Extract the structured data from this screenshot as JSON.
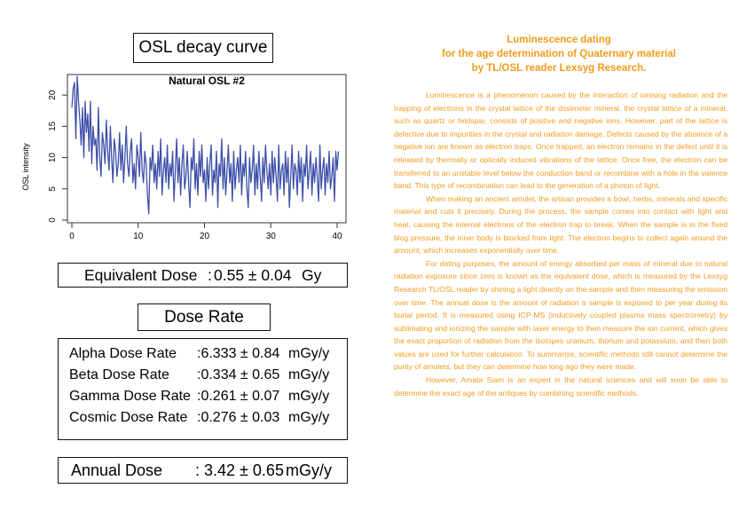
{
  "osl_title": "OSL decay curve",
  "chart_data": {
    "type": "line",
    "title": "Natural OSL #2",
    "xlabel": "",
    "ylabel": "OSL intensity",
    "xlim": [
      0,
      40
    ],
    "ylim": [
      0,
      23
    ],
    "xticks": [
      0,
      10,
      20,
      30,
      40
    ],
    "yticks": [
      0,
      5,
      10,
      15,
      20
    ],
    "grid": false,
    "series_color": "#3d4fa8",
    "x_step": 0.2,
    "x_start": 0,
    "values": [
      18,
      21,
      22,
      13,
      23,
      19,
      16,
      12,
      18,
      10,
      19,
      14,
      17,
      11,
      19,
      9,
      15,
      12,
      13,
      8,
      18,
      10,
      7,
      14,
      12,
      9,
      16,
      11,
      8,
      15,
      10,
      6,
      13,
      11,
      7,
      9,
      14,
      8,
      12,
      6,
      10,
      15,
      9,
      7,
      11,
      13,
      6,
      9,
      5,
      12,
      10,
      7,
      14,
      8,
      6,
      11,
      9,
      4,
      1,
      10,
      8,
      12,
      6,
      9,
      5,
      11,
      7,
      13,
      4,
      8,
      10,
      6,
      12,
      5,
      9,
      7,
      11,
      3,
      8,
      13,
      6,
      10,
      4,
      9,
      12,
      5,
      7,
      11,
      6,
      2,
      10,
      8,
      13,
      5,
      9,
      4,
      11,
      7,
      12,
      6,
      8,
      3,
      10,
      5,
      9,
      12,
      4,
      8,
      6,
      11,
      2,
      9,
      7,
      13,
      5,
      10,
      4,
      8,
      12,
      6,
      9,
      3,
      11,
      5,
      8,
      10,
      6,
      12,
      4,
      9,
      7,
      11,
      5,
      2,
      10,
      6,
      8,
      12,
      4,
      9,
      5,
      11,
      7,
      3,
      10,
      6,
      12,
      8,
      5,
      9,
      4,
      11,
      6,
      10,
      7,
      3,
      12,
      5,
      8,
      9,
      4,
      11,
      6,
      10,
      2,
      7,
      12,
      5,
      9,
      8,
      4,
      11,
      6,
      10,
      3,
      9,
      7,
      12,
      5,
      8,
      11,
      4,
      9,
      6,
      10,
      7,
      3,
      12,
      5,
      8,
      10,
      4,
      9,
      6,
      11,
      5,
      7,
      10,
      3,
      11,
      8,
      11
    ]
  },
  "equivalent_dose": {
    "label": "Equivalent Dose",
    "sep": ":",
    "value": "0.55 ± 0.04",
    "unit": "Gy"
  },
  "dose_rate_title": "Dose Rate",
  "dose_rates": [
    {
      "label": "Alpha Dose Rate",
      "value": ":6.333 ± 0.84",
      "unit": "mGy/y"
    },
    {
      "label": "Beta Dose Rate",
      "value": ":0.334 ± 0.65",
      "unit": "mGy/y"
    },
    {
      "label": "Gamma Dose Rate",
      "value": ":0.261 ± 0.07",
      "unit": "mGy/y"
    },
    {
      "label": "Cosmic Dose Rate",
      "value": ":0.276 ± 0.03",
      "unit": "mGy/y"
    }
  ],
  "annual_dose": {
    "label": "Annual Dose",
    "value": ": 3.42 ± 0.65",
    "unit": "mGy/y"
  },
  "article": {
    "title_lines": [
      "Luminescence dating",
      "for the age determination of Quaternary material",
      "by TL/OSL reader Lexsyg Research."
    ],
    "paragraphs": [
      "Luminescence is a phenomenon caused by the interaction of ionising radiation and the trapping of electrons in the crystal lattice of the dosimeter mineral. the crystal lattice of a mineral, such as quartz or feldspar, consists of positive and negative ions. However, part of the lattice is defective due to impurities in the crystal and radiation damage. Defects caused by the absence of a negative ion are known as electron traps. Once trapped, an electron remains in the defect until it is released by thermally or optically induced vibrations of the lattice. Once free, the electron can be transferred to an unstable level below the conduction band or recombine with a hole in the valence band. This type of recombination can lead to the generation of a photon of light.",
      "When making an ancient amulet, the artisan provides a bowl, herbs, minerals and specific material and cuts it precisely. During the process, the sample comes into contact with light and heat, causing the internal electrons of the electron trap to break. When the sample is in the fixed blog pressure, the inner body is blocked from light. The electron begins to collect again around the amount, which increases exponentially over time.",
      "For dating purposes, the amount of energy absorbed per mass of mineral due to natural radiation exposure since zero is known as the equivalent dose, which is measured by the Lexsyg Research TL/OSL reader by shining a light directly on the sample and then measuring the emission over time. The annual dose is the amount of radiation a sample is exposed to per year during its burial period. It is measured using ICP-MS (inductively coupled plasma mass spectrometry) by sublimating and ionizing the sample with laser energy to then measure the ion current, which gives the exact proportion of radiation from the isotopes uranium, thorium and potassium, and then both values are used for further calculation. To summarise, scientific methods still cannot determine the purity of amulets, but they can determine how long ago they were made.",
      "However, Amata Siam is an expert in the natural sciences and will soon be able to determine the exact age of the antiques by combining scientific methods."
    ]
  }
}
